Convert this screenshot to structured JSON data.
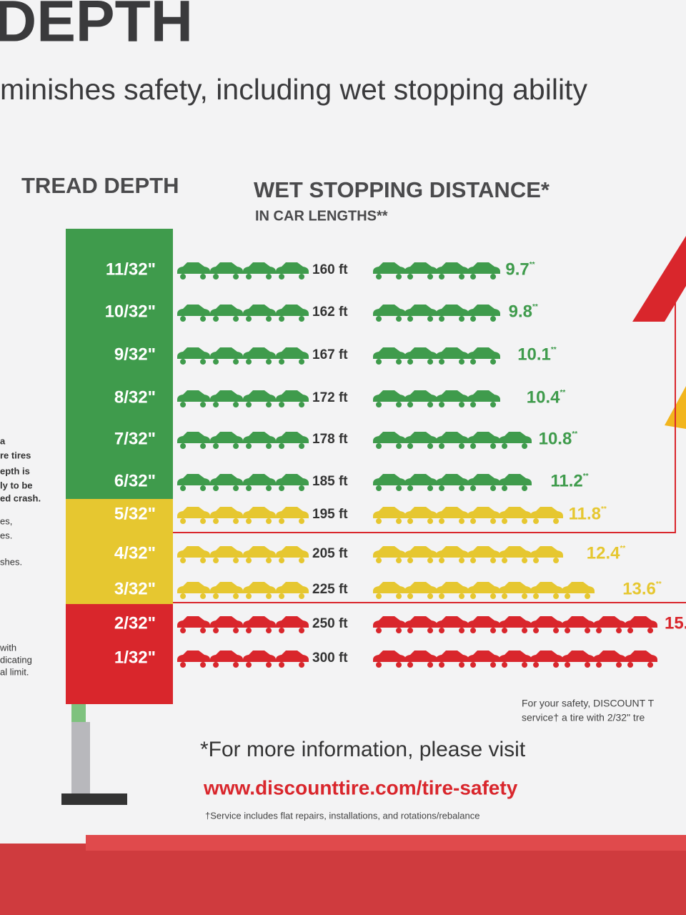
{
  "header": {
    "title": "DEPTH",
    "subtitle": "minishes safety, including wet stopping ability"
  },
  "columns": {
    "tread": "TREAD DEPTH",
    "distance": "WET STOPPING DISTANCE*",
    "distance_sub": "IN CAR LENGTHS**"
  },
  "rows": [
    {
      "depth": "11/32\"",
      "distance": "160 ft",
      "lengths": "9.7",
      "sup": "**",
      "color": "#3f9b4c"
    },
    {
      "depth": "10/32\"",
      "distance": "162 ft",
      "lengths": "9.8",
      "sup": "**",
      "color": "#3f9b4c"
    },
    {
      "depth": "9/32\"",
      "distance": "167 ft",
      "lengths": "10.1",
      "sup": "**",
      "color": "#3f9b4c"
    },
    {
      "depth": "8/32\"",
      "distance": "172 ft",
      "lengths": "10.4",
      "sup": "**",
      "color": "#3f9b4c"
    },
    {
      "depth": "7/32\"",
      "distance": "178 ft",
      "lengths": "10.8",
      "sup": "**",
      "color": "#3f9b4c"
    },
    {
      "depth": "6/32\"",
      "distance": "185 ft",
      "lengths": "11.2",
      "sup": "**",
      "color": "#3f9b4c"
    },
    {
      "depth": "5/32\"",
      "distance": "195 ft",
      "lengths": "11.8",
      "sup": "**",
      "color": "#e6c730"
    },
    {
      "depth": "4/32\"",
      "distance": "205 ft",
      "lengths": "12.4",
      "sup": "**",
      "color": "#e6c730"
    },
    {
      "depth": "3/32\"",
      "distance": "225 ft",
      "lengths": "13.6",
      "sup": "**",
      "color": "#e6c730"
    },
    {
      "depth": "2/32\"",
      "distance": "250 ft",
      "lengths": "15.",
      "color": "#d9262c"
    },
    {
      "depth": "1/32\"",
      "distance": "300 ft",
      "color": "#d9262c"
    }
  ],
  "side_text": [
    "a",
    "re tires",
    "epth is",
    "ly to be",
    "ed crash.",
    "es,",
    "es.",
    "shes.",
    "with",
    "dicating",
    "al limit."
  ],
  "footer": {
    "note_line1": "For your safety, DISCOUNT T",
    "note_line2": "service† a tire with 2/32\" tre",
    "info": "*For more information, please visit",
    "url": "www.discounttire.com/tire-safety",
    "service_note": "†Service includes flat repairs, installations, and rotations/rebalance"
  }
}
